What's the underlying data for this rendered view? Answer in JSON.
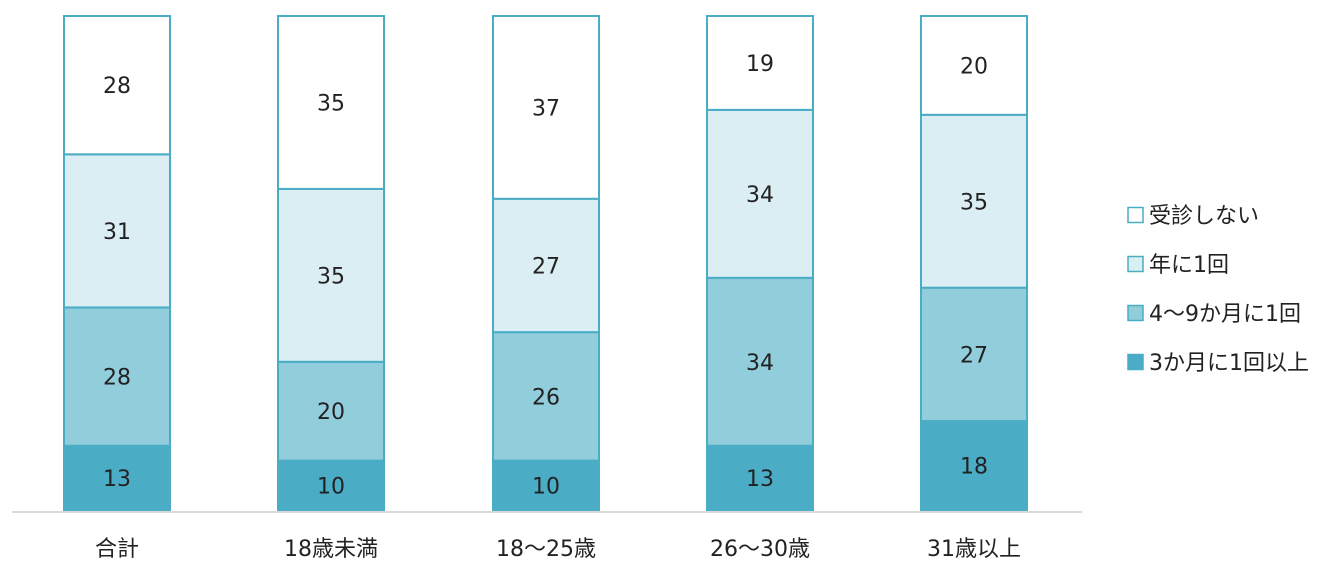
{
  "chart_data": {
    "type": "bar",
    "stacked": true,
    "stack_mode": "percent",
    "categories": [
      "合計",
      "18歳未満",
      "18〜25歳",
      "26〜30歳",
      "31歳以上"
    ],
    "series": [
      {
        "name": "3か月に1回以上",
        "values": [
          13,
          10,
          10,
          13,
          18
        ],
        "color": "#4BACC6"
      },
      {
        "name": "4〜9か月に1回",
        "values": [
          28,
          20,
          26,
          34,
          27
        ],
        "color": "#92CDDC"
      },
      {
        "name": "年に1回",
        "values": [
          31,
          35,
          27,
          34,
          35
        ],
        "color": "#DAEEF3"
      },
      {
        "name": "受診しない",
        "values": [
          28,
          35,
          37,
          19,
          20
        ],
        "color": "#FFFFFF"
      }
    ],
    "legend_order": [
      "受診しない",
      "年に1回",
      "4〜9か月に1回",
      "3か月に1回以上"
    ],
    "legend_position": "right",
    "bar_outline_color": "#4BACC6",
    "axis_color": "#D9D9D9",
    "grid": false
  }
}
